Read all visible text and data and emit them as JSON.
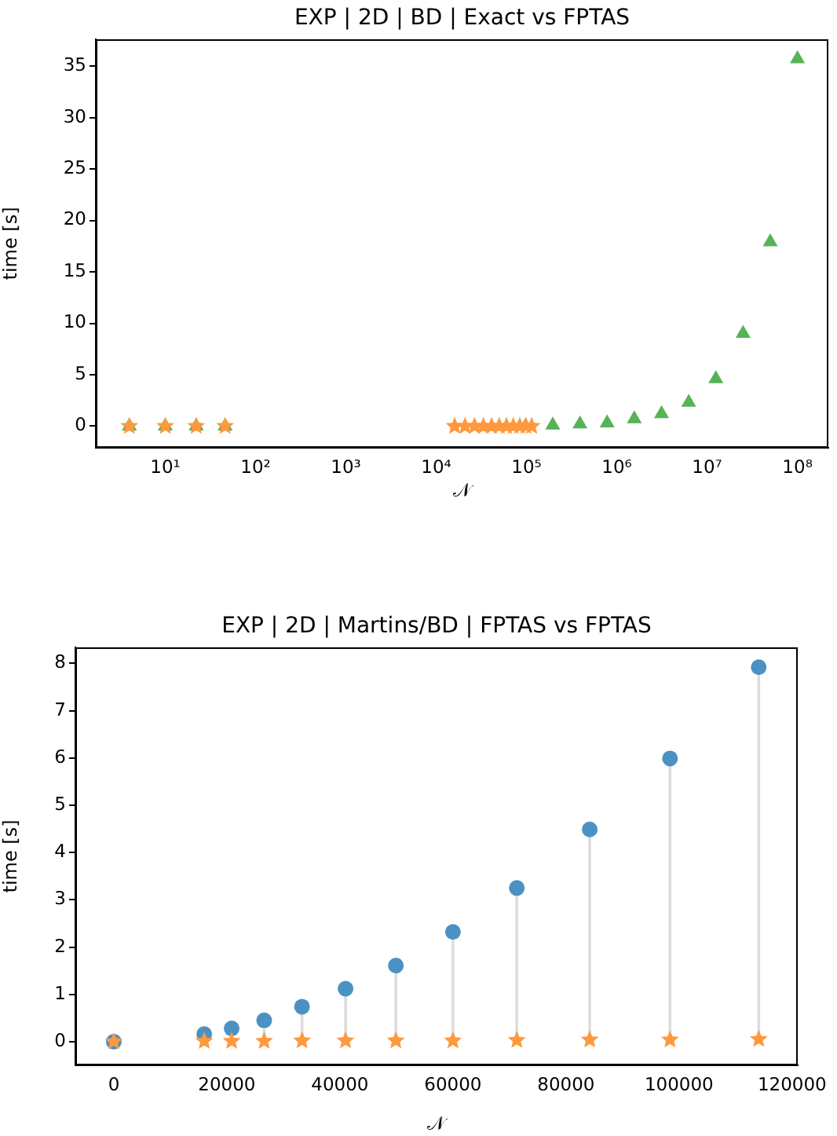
{
  "chart_data": [
    {
      "type": "scatter",
      "title": "EXP | 2D | BD | Exact vs FPTAS",
      "xlabel": "𝒩",
      "ylabel": "time [s]",
      "log": "x",
      "grid": false,
      "legend": false,
      "xlim": [
        1.7,
        220000000
      ],
      "xticks": [
        {
          "value": 10,
          "label": "10¹"
        },
        {
          "value": 100,
          "label": "10²"
        },
        {
          "value": 1000,
          "label": "10³"
        },
        {
          "value": 10000,
          "label": "10⁴"
        },
        {
          "value": 100000,
          "label": "10⁵"
        },
        {
          "value": 1000000,
          "label": "10⁶"
        },
        {
          "value": 10000000,
          "label": "10⁷"
        },
        {
          "value": 100000000,
          "label": "10⁸"
        }
      ],
      "ylim": [
        -2.1,
        37.6
      ],
      "yticks": [
        0,
        5,
        10,
        15,
        20,
        25,
        30,
        35
      ],
      "series": [
        {
          "color": "#56b356",
          "marker": "triangle",
          "x": [
            4,
            10,
            22,
            46,
            97656,
            195312,
            390625,
            781250,
            1562500,
            3125000,
            6250000,
            12500000,
            25000000,
            50000000,
            100000000
          ],
          "values": [
            0,
            0,
            0,
            0,
            0,
            0.1,
            0.2,
            0.3,
            0.7,
            1.2,
            2.3,
            4.6,
            9.0,
            17.9,
            35.7
          ]
        },
        {
          "color": "#ff993e",
          "marker": "star",
          "x": [
            4,
            10,
            22,
            46,
            16000,
            20850,
            26600,
            33300,
            41000,
            49900,
            60000,
            71300,
            84200,
            98400,
            114100
          ],
          "values": [
            0,
            0,
            0,
            0,
            0,
            0,
            0,
            0,
            0,
            0,
            0,
            0,
            0,
            0,
            0
          ]
        }
      ]
    },
    {
      "type": "scatter",
      "title": "EXP | 2D | Martins/BD | FPTAS vs FPTAS",
      "xlabel": "𝒩",
      "ylabel": "time [s]",
      "grid": false,
      "legend": false,
      "xlim": [
        -6800,
        121000
      ],
      "xticks": [
        0,
        20000,
        40000,
        60000,
        80000,
        100000,
        120000
      ],
      "ylim": [
        -0.5,
        8.34
      ],
      "yticks": [
        0,
        1,
        2,
        3,
        4,
        5,
        6,
        7,
        8
      ],
      "series": [
        {
          "type": "lollipop",
          "color": "#4b92c3",
          "marker": "circle",
          "x": [
            0,
            16000,
            20850,
            26600,
            33300,
            41000,
            49900,
            60000,
            71300,
            84200,
            98400,
            114100
          ],
          "values": [
            0,
            0.16,
            0.28,
            0.45,
            0.74,
            1.12,
            1.61,
            2.32,
            3.25,
            4.49,
            5.99,
            7.92
          ]
        },
        {
          "color": "#ff993e",
          "marker": "star",
          "x": [
            0,
            16000,
            20850,
            26600,
            33300,
            41000,
            49900,
            60000,
            71300,
            84200,
            98400,
            114100
          ],
          "values": [
            0,
            0.01,
            0.01,
            0.01,
            0.02,
            0.02,
            0.02,
            0.02,
            0.03,
            0.04,
            0.04,
            0.05
          ]
        }
      ]
    }
  ]
}
